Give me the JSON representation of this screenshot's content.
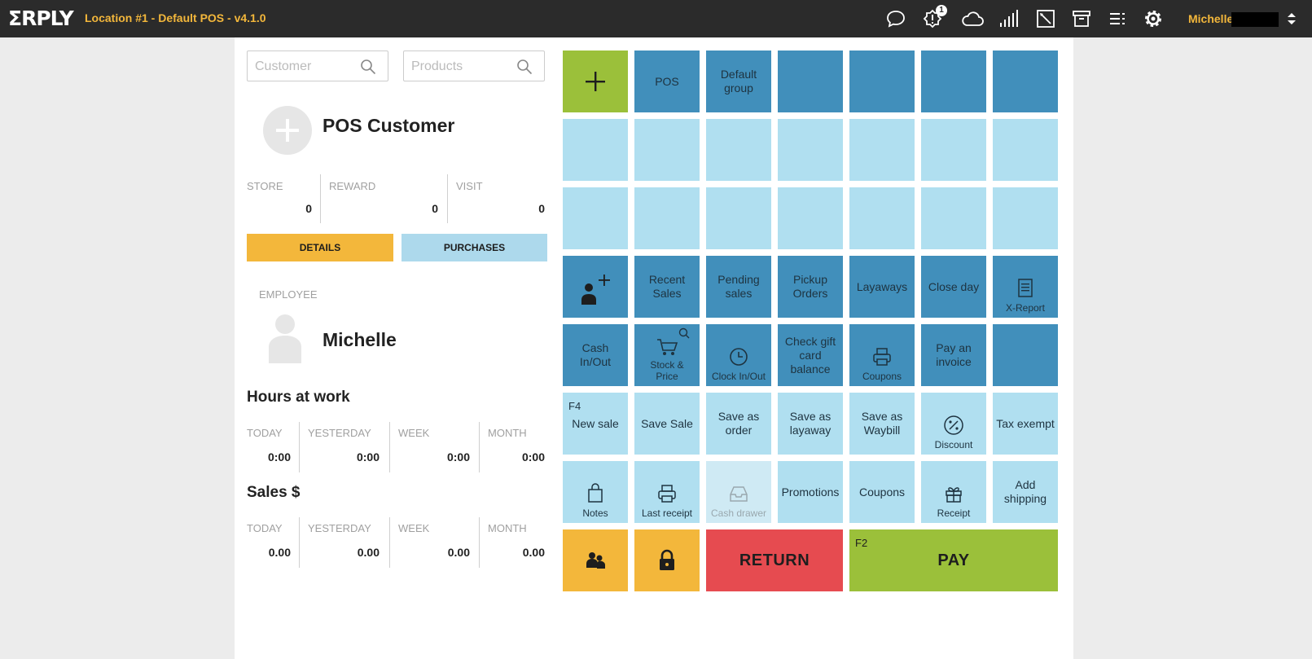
{
  "header": {
    "logo": "ΣRPLY",
    "title": "Location #1 - Default POS - v4.1.0",
    "notification_count": "1",
    "user": "Michelle",
    "icons": [
      "chat-icon",
      "alert-icon",
      "cloud-icon",
      "signal-icon",
      "edit-icon",
      "archive-icon",
      "list-icon",
      "gear-icon",
      "chevron-updown-icon"
    ]
  },
  "search": {
    "customer_placeholder": "Customer",
    "products_placeholder": "Products"
  },
  "customer": {
    "name": "POS Customer",
    "stats": [
      {
        "label": "STORE",
        "value": "0"
      },
      {
        "label": "REWARD",
        "value": "0"
      },
      {
        "label": "VISIT",
        "value": "0"
      }
    ],
    "details_label": "DETAILS",
    "purchases_label": "PURCHASES"
  },
  "employee": {
    "label": "EMPLOYEE",
    "name": "Michelle"
  },
  "hours": {
    "title": "Hours at work",
    "cols": [
      {
        "label": "TODAY",
        "value": "0:00"
      },
      {
        "label": "YESTERDAY",
        "value": "0:00"
      },
      {
        "label": "WEEK",
        "value": "0:00"
      },
      {
        "label": "MONTH",
        "value": "0:00"
      }
    ]
  },
  "sales": {
    "title": "Sales $",
    "cols": [
      {
        "label": "TODAY",
        "value": "0.00"
      },
      {
        "label": "YESTERDAY",
        "value": "0.00"
      },
      {
        "label": "WEEK",
        "value": "0.00"
      },
      {
        "label": "MONTH",
        "value": "0.00"
      }
    ]
  },
  "tiles": {
    "pos": "POS",
    "default_group": "Default group",
    "recent_sales": "Recent Sales",
    "pending_sales": "Pending sales",
    "pickup_orders": "Pickup Orders",
    "layaways": "Layaways",
    "close_day": "Close day",
    "x_report": "X-Report",
    "cash_inout": "Cash In/Out",
    "stock_price": "Stock & Price",
    "clock_inout": "Clock In/Out",
    "check_gift_card": "Check gift card balance",
    "coupons_top": "Coupons",
    "pay_invoice": "Pay an invoice",
    "f4": "F4",
    "new_sale": "New sale",
    "save_sale": "Save Sale",
    "save_order": "Save as order",
    "save_layaway": "Save as layaway",
    "save_waybill": "Save as Waybill",
    "discount": "Discount",
    "tax_exempt": "Tax exempt",
    "notes": "Notes",
    "last_receipt": "Last receipt",
    "cash_drawer": "Cash drawer",
    "promotions": "Promotions",
    "coupons": "Coupons",
    "receipt": "Receipt",
    "add_shipping": "Add shipping",
    "return": "RETURN",
    "f2": "F2",
    "pay": "PAY"
  },
  "colors": {
    "topbar": "#2b2b2b",
    "accent_yellow": "#f3b73b",
    "tile_dark": "#418fbb",
    "tile_light": "#b0dff0",
    "green": "#9bc03a",
    "red": "#e64b50"
  }
}
